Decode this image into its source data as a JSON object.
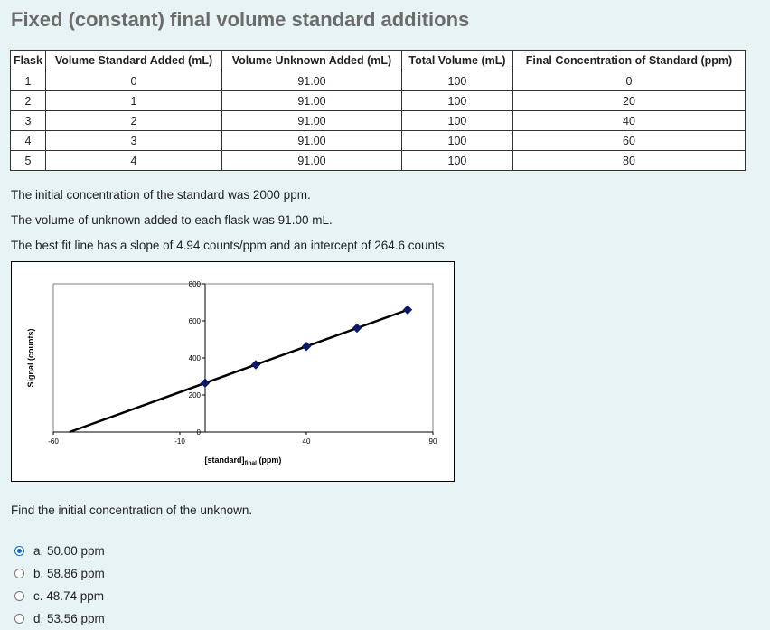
{
  "title": "Fixed (constant) final volume standard additions",
  "table": {
    "headers": [
      "Flask",
      "Volume Standard Added (mL)",
      "Volume Unknown Added (mL)",
      "Total Volume (mL)",
      "Final Concentration of Standard (ppm)"
    ],
    "rows": [
      [
        "1",
        "0",
        "91.00",
        "100",
        "0"
      ],
      [
        "2",
        "1",
        "91.00",
        "100",
        "20"
      ],
      [
        "3",
        "2",
        "91.00",
        "100",
        "40"
      ],
      [
        "4",
        "3",
        "91.00",
        "100",
        "60"
      ],
      [
        "5",
        "4",
        "91.00",
        "100",
        "80"
      ]
    ]
  },
  "info": [
    "The initial concentration of the standard was 2000 ppm.",
    "The volume of unknown added to each flask was 91.00 mL.",
    "The best fit line has a slope of 4.94 counts/ppm and an intercept of 264.6 counts."
  ],
  "chart_data": {
    "type": "scatter",
    "x": [
      0,
      20,
      40,
      60,
      80
    ],
    "y": [
      264.6,
      363.4,
      462.2,
      561.0,
      659.8
    ],
    "fit_line": {
      "x": [
        -53.6,
        80
      ],
      "y": [
        0,
        659.8
      ]
    },
    "xlim": [
      -60,
      90
    ],
    "ylim": [
      0,
      800
    ],
    "x_ticks": [
      "-60",
      "-10",
      "40",
      "90"
    ],
    "y_ticks": [
      "0",
      "200",
      "400",
      "600",
      "800"
    ],
    "xlabel_main": "[standard]",
    "xlabel_sub": "final",
    "xlabel_unit": " (ppm)",
    "ylabel": "Signal (counts)",
    "marker_color": "#0a1a6b",
    "line_color": "#000000"
  },
  "question": "Find the initial concentration of the unknown.",
  "answers": [
    {
      "label": "a. 50.00 ppm",
      "checked": true
    },
    {
      "label": "b. 58.86 ppm",
      "checked": false
    },
    {
      "label": "c. 48.74 ppm",
      "checked": false
    },
    {
      "label": "d. 53.56 ppm",
      "checked": false
    }
  ]
}
